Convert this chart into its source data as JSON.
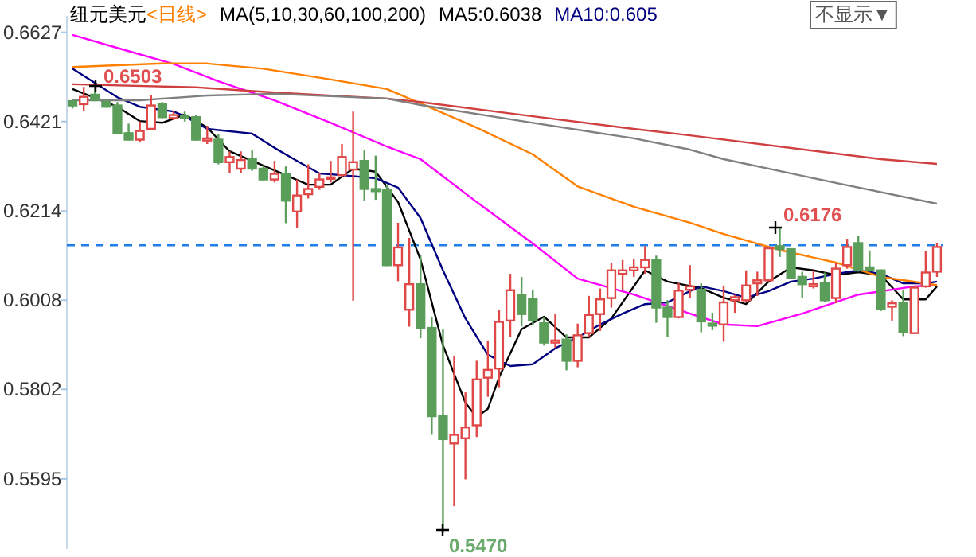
{
  "chart_data": {
    "type": "candlestick",
    "title": "纽元美元",
    "subtitle": "<日线>",
    "legend_title": "MA(5,10,30,60,100,200)",
    "legend": "top left",
    "categories": [
      null,
      null,
      null,
      null,
      null,
      null,
      null,
      null,
      null,
      null,
      null,
      null,
      null,
      null,
      null,
      null,
      null,
      null,
      null,
      null,
      null,
      null,
      null,
      null,
      null,
      null,
      null,
      null,
      null,
      null,
      null,
      null,
      null,
      null,
      null,
      null,
      null,
      null,
      null,
      null,
      null,
      null,
      null,
      null,
      null,
      null,
      null,
      null,
      null,
      null,
      null,
      null,
      null,
      null,
      null,
      null,
      null,
      null,
      null,
      null,
      null,
      null,
      null,
      null,
      null,
      null,
      null,
      null,
      null,
      null,
      null,
      null,
      null,
      null,
      null,
      null,
      null,
      null
    ],
    "ohlc": [
      [
        0.6468,
        0.6471,
        0.6451,
        0.6458
      ],
      [
        0.6461,
        0.6501,
        0.6446,
        0.6478
      ],
      [
        0.6483,
        0.6503,
        0.6468,
        0.6471
      ],
      [
        0.6466,
        0.6471,
        0.6453,
        0.6455
      ],
      [
        0.6458,
        0.6466,
        0.6392,
        0.6394
      ],
      [
        0.6394,
        0.6416,
        0.6377,
        0.6379
      ],
      [
        0.6379,
        0.6421,
        0.6374,
        0.6399
      ],
      [
        0.6404,
        0.6483,
        0.6401,
        0.6458
      ],
      [
        0.6461,
        0.6466,
        0.6429,
        0.6431
      ],
      [
        0.6429,
        0.6446,
        0.6424,
        0.6436
      ],
      [
        0.6434,
        0.6444,
        0.6421,
        0.6429
      ],
      [
        0.6431,
        0.6436,
        0.6377,
        0.6379
      ],
      [
        0.6377,
        0.6411,
        0.6369,
        0.6382
      ],
      [
        0.6379,
        0.6392,
        0.6322,
        0.6327
      ],
      [
        0.6327,
        0.6352,
        0.6302,
        0.6339
      ],
      [
        0.6312,
        0.6352,
        0.6302,
        0.6332
      ],
      [
        0.6335,
        0.6354,
        0.6307,
        0.6312
      ],
      [
        0.6312,
        0.632,
        0.6285,
        0.6287
      ],
      [
        0.6287,
        0.633,
        0.628,
        0.63
      ],
      [
        0.63,
        0.6317,
        0.6186,
        0.6238
      ],
      [
        0.6213,
        0.6287,
        0.6176,
        0.625
      ],
      [
        0.6253,
        0.6322,
        0.6243,
        0.6265
      ],
      [
        0.627,
        0.6302,
        0.6263,
        0.6287
      ],
      [
        0.629,
        0.633,
        0.628,
        0.6292
      ],
      [
        0.6297,
        0.6369,
        0.6292,
        0.6339
      ],
      [
        0.631,
        0.6444,
        0.6007,
        0.6327
      ],
      [
        0.633,
        0.6354,
        0.6238,
        0.6265
      ],
      [
        0.6265,
        0.6342,
        0.624,
        0.626
      ],
      [
        0.6263,
        0.6275,
        0.6087,
        0.6089
      ],
      [
        0.6089,
        0.6187,
        0.6052,
        0.613
      ],
      [
        0.5986,
        0.6152,
        0.5947,
        0.6045
      ],
      [
        0.6045,
        0.6113,
        0.592,
        0.5944
      ],
      [
        0.5944,
        0.5969,
        0.5697,
        0.574
      ],
      [
        0.574,
        0.5942,
        0.547,
        0.5687
      ],
      [
        0.5677,
        0.588,
        0.5532,
        0.5697
      ],
      [
        0.5689,
        0.5795,
        0.5594,
        0.5714
      ],
      [
        0.5719,
        0.5868,
        0.5692,
        0.5825
      ],
      [
        0.5829,
        0.5915,
        0.5785,
        0.5847
      ],
      [
        0.585,
        0.5986,
        0.5807,
        0.5958
      ],
      [
        0.5961,
        0.6069,
        0.5922,
        0.6031
      ],
      [
        0.6021,
        0.6062,
        0.5947,
        0.5976
      ],
      [
        0.601,
        0.6032,
        0.5951,
        0.5961
      ],
      [
        0.5955,
        0.5969,
        0.5903,
        0.591
      ],
      [
        0.591,
        0.5976,
        0.5898,
        0.5915
      ],
      [
        0.5917,
        0.5929,
        0.5846,
        0.5868
      ],
      [
        0.5868,
        0.5954,
        0.5853,
        0.5927
      ],
      [
        0.5932,
        0.6018,
        0.5922,
        0.5974
      ],
      [
        0.5976,
        0.6035,
        0.5937,
        0.601
      ],
      [
        0.6013,
        0.6094,
        0.5991,
        0.6077
      ],
      [
        0.6069,
        0.6101,
        0.603,
        0.6077
      ],
      [
        0.6077,
        0.6103,
        0.6062,
        0.6084
      ],
      [
        0.6084,
        0.6133,
        0.6069,
        0.6101
      ],
      [
        0.6101,
        0.6111,
        0.5956,
        0.5991
      ],
      [
        0.5991,
        0.6008,
        0.5924,
        0.5969
      ],
      [
        0.5969,
        0.6047,
        0.5966,
        0.603
      ],
      [
        0.6032,
        0.6089,
        0.6013,
        0.604
      ],
      [
        0.6032,
        0.6047,
        0.5934,
        0.5959
      ],
      [
        0.5954,
        0.5979,
        0.5939,
        0.5949
      ],
      [
        0.5952,
        0.6042,
        0.5912,
        0.6003
      ],
      [
        0.6008,
        0.602,
        0.5979,
        0.6015
      ],
      [
        0.6008,
        0.6077,
        0.6003,
        0.6042
      ],
      [
        0.6047,
        0.6074,
        0.6018,
        0.6054
      ],
      [
        0.6054,
        0.613,
        0.6052,
        0.6128
      ],
      [
        0.6133,
        0.6176,
        0.6108,
        0.6126
      ],
      [
        0.6126,
        0.6128,
        0.6057,
        0.6059
      ],
      [
        0.6062,
        0.6074,
        0.6013,
        0.6045
      ],
      [
        0.604,
        0.6077,
        0.6035,
        0.6045
      ],
      [
        0.6047,
        0.6072,
        0.6003,
        0.6008
      ],
      [
        0.6013,
        0.6094,
        0.6001,
        0.6081
      ],
      [
        0.6089,
        0.615,
        0.6081,
        0.6131
      ],
      [
        0.614,
        0.6157,
        0.6074,
        0.6077
      ],
      [
        0.6084,
        0.6123,
        0.6074,
        0.6077
      ],
      [
        0.6077,
        0.6079,
        0.5983,
        0.5988
      ],
      [
        0.5993,
        0.6008,
        0.5961,
        0.6001
      ],
      [
        0.6001,
        0.6032,
        0.5925,
        0.5934
      ],
      [
        0.5932,
        0.604,
        0.593,
        0.6037
      ],
      [
        0.604,
        0.6121,
        0.6037,
        0.6072
      ],
      [
        0.6074,
        0.614,
        0.6062,
        0.6131
      ]
    ],
    "series": [
      {
        "type": "line",
        "name": "MA5:0.6038",
        "color": "#000000",
        "values": [
          0.6496,
          null,
          null,
          null,
          0.6455,
          null,
          0.6422,
          null,
          0.6418,
          null,
          0.6437,
          null,
          0.6407,
          null,
          0.6352,
          null,
          0.633,
          null,
          0.6308,
          null,
          null,
          0.6275,
          null,
          0.6275,
          null,
          0.6312,
          null,
          0.6305,
          null,
          0.6235,
          null,
          0.6102,
          null,
          0.5904,
          null,
          0.5771,
          0.5738,
          0.5757,
          0.583,
          null,
          0.5941,
          null,
          0.597,
          null,
          0.5922,
          null,
          0.5922,
          null,
          0.5966,
          null,
          null,
          0.6077,
          null,
          0.6051,
          null,
          null,
          0.6036,
          null,
          0.6014,
          null,
          0.5999,
          null,
          0.6051,
          null,
          0.6084,
          null,
          0.6077,
          null,
          0.6066,
          null,
          0.6073,
          null,
          0.6066,
          null,
          0.601,
          null,
          0.601,
          0.604
        ]
      },
      {
        "type": "line",
        "name": "MA10:0.605",
        "color": "#000080",
        "values": [
          0.6543,
          null,
          null,
          null,
          0.6477,
          null,
          0.6455,
          null,
          null,
          0.6444,
          0.6433,
          null,
          0.6404,
          null,
          null,
          null,
          0.6393,
          null,
          0.636,
          null,
          0.633,
          null,
          0.6301,
          null,
          0.6297,
          null,
          null,
          0.629,
          null,
          0.6268,
          null,
          0.6198,
          null,
          0.6077,
          null,
          0.5966,
          null,
          0.5882,
          null,
          0.5856,
          null,
          0.586,
          null,
          0.5897,
          null,
          0.5922,
          null,
          0.5952,
          null,
          0.5977,
          null,
          0.5999,
          null,
          0.6003,
          null,
          0.6029,
          0.604,
          null,
          0.6029,
          null,
          0.6014,
          null,
          0.6029,
          null,
          0.6051,
          null,
          0.6058,
          null,
          0.6069,
          null,
          0.6077,
          null,
          0.6069,
          null,
          0.6047,
          null,
          0.6047,
          0.6051
        ]
      },
      {
        "type": "line",
        "color": "#ff00ff",
        "values": [
          0.6621,
          null,
          null,
          null,
          0.6591,
          null,
          null,
          null,
          null,
          0.6554,
          null,
          null,
          null,
          0.6514,
          null,
          null,
          null,
          null,
          0.647,
          null,
          null,
          null,
          null,
          0.6418,
          null,
          null,
          null,
          null,
          0.6363,
          null,
          null,
          0.6334,
          null,
          null,
          null,
          null,
          0.6235,
          null,
          null,
          null,
          null,
          0.6139,
          null,
          null,
          null,
          0.6058,
          null,
          null,
          null,
          null,
          0.6021,
          null,
          null,
          null,
          null,
          0.5977,
          null,
          null,
          0.5952,
          null,
          null,
          0.5948,
          null,
          null,
          null,
          0.5977,
          null,
          null,
          null,
          null,
          0.6021,
          null,
          null,
          null,
          null,
          0.604,
          null,
          0.6043
        ]
      },
      {
        "type": "line",
        "color": "#ff8000",
        "values": [
          0.6547,
          null,
          null,
          null,
          null,
          null,
          null,
          null,
          0.6555,
          null,
          null,
          null,
          0.6555,
          null,
          null,
          null,
          null,
          0.6543,
          null,
          null,
          null,
          null,
          null,
          0.6518,
          null,
          null,
          null,
          null,
          0.6496,
          null,
          null,
          0.6463,
          null,
          null,
          null,
          null,
          0.6407,
          null,
          null,
          null,
          null,
          0.6345,
          null,
          null,
          null,
          0.6271,
          null,
          null,
          null,
          null,
          0.6224,
          null,
          null,
          null,
          null,
          0.6187,
          null,
          null,
          0.6161,
          null,
          null,
          null,
          null,
          0.6124,
          null,
          null,
          null,
          null,
          0.6095,
          null,
          null,
          null,
          0.6062,
          null,
          null,
          null,
          null,
          0.6043
        ]
      },
      {
        "type": "line",
        "color": "#d04040",
        "values": [
          0.6507,
          null,
          null,
          null,
          null,
          null,
          null,
          null,
          null,
          null,
          null,
          0.65,
          null,
          null,
          null,
          null,
          null,
          null,
          0.6488,
          null,
          null,
          null,
          null,
          null,
          null,
          null,
          null,
          null,
          0.6474,
          null,
          null,
          0.6466,
          null,
          null,
          null,
          null,
          null,
          null,
          null,
          null,
          null,
          0.6433,
          null,
          null,
          null,
          null,
          null,
          null,
          null,
          null,
          0.6404,
          null,
          null,
          null,
          null,
          0.6389,
          null,
          null,
          null,
          null,
          null,
          null,
          null,
          null,
          null,
          null,
          null,
          null,
          null,
          null,
          null,
          null,
          0.6334,
          null,
          null,
          null,
          null,
          0.6323
        ]
      },
      {
        "type": "line",
        "color": "#808080",
        "values": [
          0.647,
          null,
          null,
          null,
          null,
          null,
          0.647,
          null,
          null,
          null,
          null,
          null,
          0.6481,
          null,
          null,
          null,
          null,
          null,
          0.6485,
          null,
          null,
          null,
          null,
          null,
          null,
          null,
          null,
          null,
          0.6474,
          null,
          null,
          0.6459,
          null,
          null,
          null,
          null,
          null,
          null,
          null,
          null,
          null,
          0.6418,
          null,
          null,
          null,
          null,
          null,
          null,
          null,
          null,
          0.6382,
          null,
          null,
          null,
          null,
          0.6356,
          null,
          null,
          0.6334,
          null,
          null,
          null,
          null,
          null,
          null,
          null,
          null,
          null,
          0.6279,
          null,
          null,
          null,
          null,
          null,
          null,
          null,
          null,
          0.6231
        ]
      }
    ],
    "ylim": [
      0.5433,
      0.6665
    ],
    "yticks": [
      0.6627,
      0.6421,
      0.6214,
      0.6008,
      0.5802,
      0.5595
    ],
    "ref_lines": [
      {
        "axis": "y",
        "value": 0.6135,
        "color": "#1e7fe8",
        "line_style": "dashed"
      }
    ],
    "annotations": [
      "0.6503",
      "0.6176",
      "0.5470",
      "不显示▼"
    ]
  }
}
